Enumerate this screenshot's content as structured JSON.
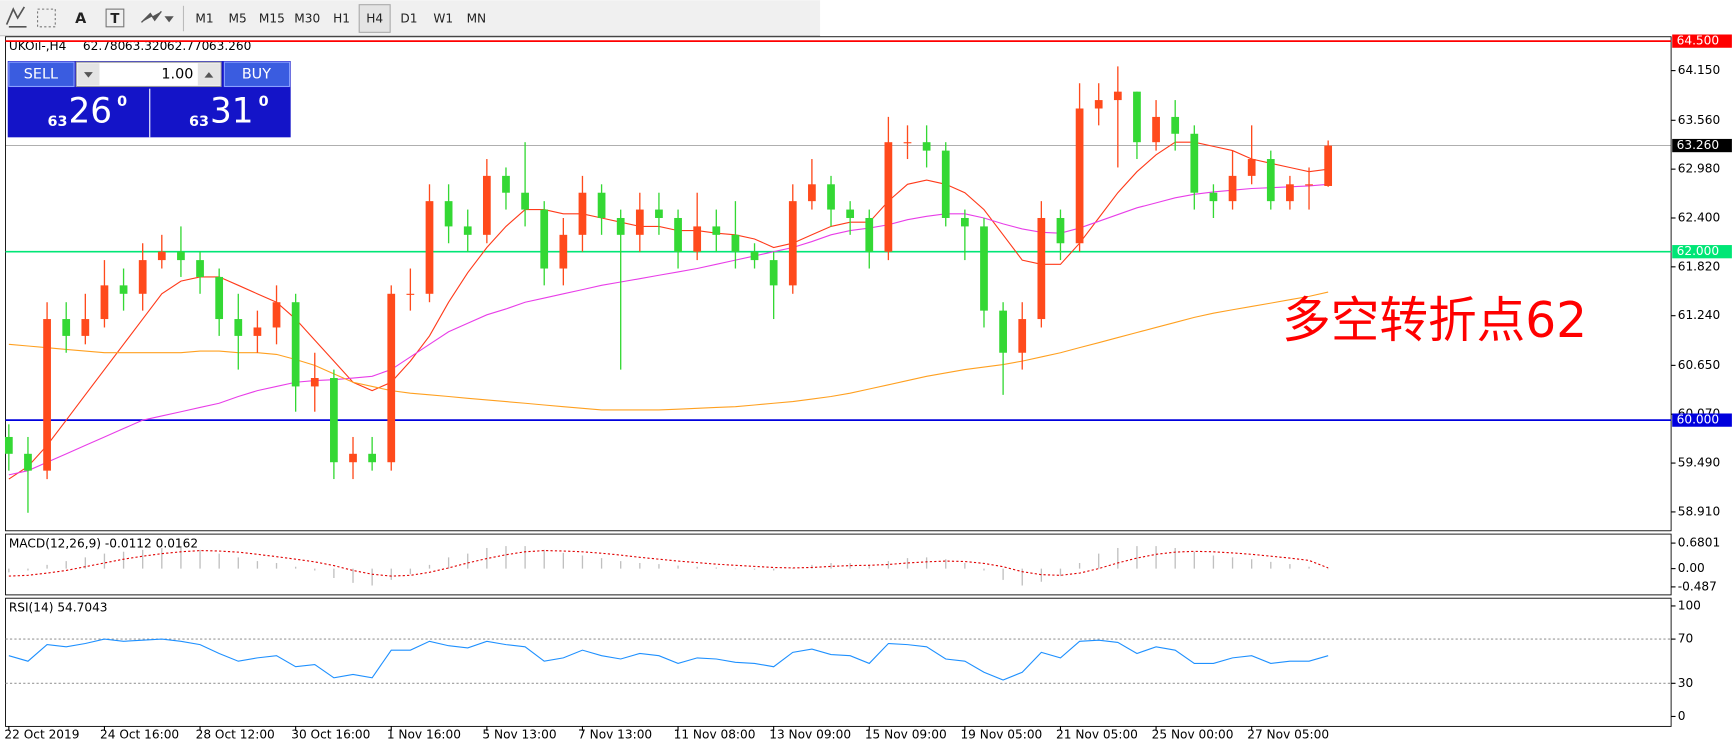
{
  "toolbar": {
    "tools": [
      "A",
      "T"
    ],
    "timeframes": [
      "M1",
      "M5",
      "M15",
      "M30",
      "H1",
      "H4",
      "D1",
      "W1",
      "MN"
    ],
    "active": "H4"
  },
  "trade_panel": {
    "sell": "SELL",
    "lots": "1.00",
    "buy": "BUY",
    "bid_big": "63",
    "bid": "26",
    "bid_sup": "0",
    "ask_big": "63",
    "ask": "31",
    "ask_sup": "0"
  },
  "chart_data": [
    {
      "type": "candlestick",
      "title": "UKOil-,H4",
      "header_values": [
        {
          "value": 62.78,
          "label": "62.780"
        },
        {
          "value": 63.32,
          "label": "63.320"
        },
        {
          "value": 62.77,
          "label": "62.770"
        },
        {
          "value": 63.26,
          "label": "63.260"
        }
      ],
      "categories": [
        "22 Oct 2019",
        null,
        null,
        null,
        null,
        "24 Oct 16:00",
        null,
        null,
        null,
        null,
        "28 Oct 12:00",
        null,
        null,
        null,
        null,
        "30 Oct 16:00",
        null,
        null,
        null,
        null,
        "1 Nov 16:00",
        null,
        null,
        null,
        null,
        "5 Nov 13:00",
        null,
        null,
        null,
        null,
        "7 Nov 13:00",
        null,
        null,
        null,
        null,
        "11 Nov 08:00",
        null,
        null,
        null,
        null,
        "13 Nov 09:00",
        null,
        null,
        null,
        null,
        "15 Nov 09:00",
        null,
        null,
        null,
        null,
        "19 Nov 05:00",
        null,
        null,
        null,
        null,
        "21 Nov 05:00",
        null,
        null,
        null,
        null,
        "25 Nov 00:00",
        null,
        null,
        null,
        null,
        "27 Nov 05:00",
        null,
        null,
        null,
        null
      ],
      "open": [
        59.8,
        59.6,
        59.4,
        61.2,
        61.0,
        61.2,
        61.6,
        61.5,
        61.9,
        62.0,
        61.9,
        61.7,
        61.2,
        61.0,
        61.1,
        61.4,
        60.4,
        60.5,
        59.5,
        59.6,
        59.5,
        61.5,
        61.5,
        62.6,
        62.3,
        62.2,
        62.9,
        62.7,
        62.5,
        61.8,
        62.2,
        62.7,
        62.4,
        62.2,
        62.5,
        62.4,
        62.0,
        62.3,
        62.2,
        62.0,
        61.9,
        61.6,
        62.6,
        62.8,
        62.5,
        62.4,
        62.0,
        63.3,
        63.3,
        63.2,
        62.4,
        62.3,
        61.3,
        60.8,
        61.2,
        62.4,
        62.1,
        63.7,
        63.8,
        63.9,
        63.3,
        63.6,
        63.4,
        62.7,
        62.6,
        62.9,
        63.1,
        62.6,
        62.8,
        62.78
      ],
      "high": [
        59.95,
        59.8,
        61.4,
        61.4,
        61.5,
        61.9,
        61.8,
        62.1,
        62.2,
        62.3,
        62.0,
        61.8,
        61.5,
        61.3,
        61.6,
        61.5,
        60.8,
        60.6,
        59.8,
        59.8,
        61.6,
        61.8,
        62.8,
        62.8,
        62.5,
        63.1,
        63.0,
        63.3,
        62.6,
        62.4,
        62.9,
        62.8,
        62.5,
        62.7,
        62.7,
        62.5,
        62.7,
        62.5,
        62.6,
        62.1,
        62.0,
        62.8,
        63.1,
        62.9,
        62.6,
        62.5,
        63.6,
        63.5,
        63.5,
        63.3,
        62.5,
        62.4,
        61.4,
        61.4,
        62.6,
        62.5,
        64.0,
        64.0,
        64.2,
        63.9,
        63.8,
        63.8,
        63.5,
        62.8,
        63.2,
        63.5,
        63.2,
        62.9,
        63.0,
        63.32
      ],
      "low": [
        59.4,
        58.9,
        59.3,
        60.8,
        60.9,
        61.1,
        61.3,
        61.3,
        61.8,
        61.7,
        61.5,
        61.0,
        60.6,
        60.8,
        60.9,
        60.1,
        60.1,
        59.3,
        59.3,
        59.4,
        59.4,
        61.3,
        61.4,
        62.1,
        62.0,
        62.1,
        62.5,
        62.3,
        61.6,
        61.6,
        62.0,
        62.2,
        60.6,
        62.0,
        62.2,
        61.8,
        61.9,
        62.0,
        61.8,
        61.8,
        61.2,
        61.5,
        62.5,
        62.3,
        62.2,
        61.8,
        61.9,
        63.1,
        63.0,
        62.3,
        61.9,
        61.1,
        60.3,
        60.6,
        61.1,
        61.9,
        62.0,
        63.5,
        63.0,
        63.1,
        63.2,
        63.2,
        62.5,
        62.4,
        62.5,
        62.8,
        62.5,
        62.5,
        62.5,
        62.77
      ],
      "close": [
        59.6,
        59.4,
        61.2,
        61.0,
        61.2,
        61.6,
        61.5,
        61.9,
        62.0,
        61.9,
        61.7,
        61.2,
        61.0,
        61.1,
        61.4,
        60.4,
        60.5,
        59.5,
        59.6,
        59.5,
        61.5,
        61.5,
        62.6,
        62.3,
        62.2,
        62.9,
        62.7,
        62.5,
        61.8,
        62.2,
        62.7,
        62.4,
        62.2,
        62.5,
        62.4,
        62.0,
        62.3,
        62.2,
        62.0,
        61.9,
        61.6,
        62.6,
        62.8,
        62.5,
        62.4,
        62.0,
        63.3,
        63.3,
        63.2,
        62.4,
        62.3,
        61.3,
        60.8,
        61.2,
        62.4,
        62.1,
        63.7,
        63.8,
        63.9,
        63.3,
        63.6,
        63.4,
        62.7,
        62.6,
        62.9,
        63.1,
        62.6,
        62.8,
        62.8,
        63.26
      ],
      "up_color": "#ff4a1c",
      "down_color": "#34d834",
      "series": [
        {
          "color": "#ff3a1a",
          "values": [
            59.3,
            59.45,
            59.7,
            60.0,
            60.3,
            60.6,
            60.9,
            61.2,
            61.5,
            61.65,
            61.7,
            61.7,
            61.6,
            61.5,
            61.4,
            61.2,
            60.95,
            60.7,
            60.45,
            60.35,
            60.45,
            60.7,
            61.0,
            61.4,
            61.75,
            62.05,
            62.3,
            62.5,
            62.5,
            62.45,
            62.45,
            62.4,
            62.35,
            62.3,
            62.3,
            62.25,
            62.25,
            62.22,
            62.2,
            62.15,
            62.05,
            62.1,
            62.2,
            62.3,
            62.35,
            62.35,
            62.6,
            62.8,
            62.85,
            62.8,
            62.7,
            62.5,
            62.2,
            61.9,
            61.85,
            61.85,
            62.1,
            62.4,
            62.7,
            62.95,
            63.15,
            63.3,
            63.3,
            63.25,
            63.2,
            63.1,
            63.05,
            63.0,
            62.95,
            62.98
          ]
        },
        {
          "color": "#e83ee8",
          "values": [
            59.35,
            59.4,
            59.5,
            59.6,
            59.7,
            59.8,
            59.9,
            60.0,
            60.05,
            60.1,
            60.15,
            60.2,
            60.28,
            60.35,
            60.4,
            60.45,
            60.47,
            60.48,
            60.5,
            60.52,
            60.6,
            60.75,
            60.9,
            61.05,
            61.15,
            61.25,
            61.32,
            61.4,
            61.45,
            61.5,
            61.55,
            61.6,
            61.64,
            61.68,
            61.72,
            61.76,
            61.8,
            61.85,
            61.9,
            61.95,
            62.0,
            62.05,
            62.12,
            62.2,
            62.25,
            62.28,
            62.32,
            62.38,
            62.42,
            62.45,
            62.45,
            62.4,
            62.33,
            62.27,
            62.23,
            62.22,
            62.28,
            62.36,
            62.44,
            62.52,
            62.58,
            62.64,
            62.68,
            62.71,
            62.73,
            62.75,
            62.76,
            62.77,
            62.78,
            62.8
          ]
        },
        {
          "color": "#ffa020",
          "values": [
            60.9,
            60.88,
            60.86,
            60.84,
            60.82,
            60.8,
            60.8,
            60.8,
            60.8,
            60.8,
            60.82,
            60.82,
            60.8,
            60.8,
            60.78,
            60.72,
            60.65,
            60.55,
            60.45,
            60.4,
            60.35,
            60.32,
            60.3,
            60.28,
            60.26,
            60.24,
            60.22,
            60.2,
            60.18,
            60.16,
            60.14,
            60.12,
            60.12,
            60.12,
            60.12,
            60.13,
            60.14,
            60.15,
            60.16,
            60.18,
            60.2,
            60.22,
            60.25,
            60.28,
            60.32,
            60.37,
            60.42,
            60.47,
            60.52,
            60.56,
            60.6,
            60.63,
            60.66,
            60.7,
            60.75,
            60.8,
            60.86,
            60.92,
            60.98,
            61.04,
            61.1,
            61.16,
            61.22,
            61.27,
            61.31,
            61.35,
            61.39,
            61.43,
            61.47,
            61.52
          ]
        }
      ],
      "levels": [
        {
          "value": 64.5,
          "label": "64.500",
          "color": "#ff0000"
        },
        {
          "value": 63.26,
          "label": "63.260",
          "color": "#000000"
        },
        {
          "value": 62.0,
          "label": "62.000",
          "color": "#00e676"
        },
        {
          "value": 60.0,
          "label": "60.000",
          "color": "#0000dd"
        }
      ],
      "annotation": {
        "text": "多空转折点62",
        "color": "#ff0000"
      },
      "ylim": [
        58.686,
        64.552
      ],
      "yticks": [
        {
          "value": 64.15,
          "label": "64.150"
        },
        {
          "value": 63.56,
          "label": "63.560"
        },
        {
          "value": 62.98,
          "label": "62.980"
        },
        {
          "value": 62.4,
          "label": "62.400"
        },
        {
          "value": 61.82,
          "label": "61.820"
        },
        {
          "value": 61.24,
          "label": "61.240"
        },
        {
          "value": 60.65,
          "label": "60.650"
        },
        {
          "value": 60.07,
          "label": "60.070"
        },
        {
          "value": 59.49,
          "label": "59.490"
        },
        {
          "value": 58.91,
          "label": "58.910"
        }
      ]
    },
    {
      "type": "macd",
      "title": "MACD(12,26,9) -0.0112 0.0162",
      "series": [
        {
          "color": "#c0c0c0",
          "values": [
            -0.1,
            -0.05,
            0.1,
            0.2,
            0.3,
            0.4,
            0.45,
            0.5,
            0.55,
            0.55,
            0.5,
            0.4,
            0.3,
            0.2,
            0.15,
            0.05,
            -0.05,
            -0.25,
            -0.38,
            -0.45,
            -0.3,
            -0.15,
            0.1,
            0.3,
            0.4,
            0.55,
            0.6,
            0.6,
            0.5,
            0.42,
            0.35,
            0.28,
            0.2,
            0.15,
            0.12,
            0.08,
            0.05,
            0.03,
            0.0,
            -0.03,
            -0.05,
            0.02,
            0.1,
            0.15,
            0.15,
            0.1,
            0.2,
            0.28,
            0.3,
            0.25,
            0.15,
            -0.05,
            -0.3,
            -0.45,
            -0.35,
            -0.2,
            0.15,
            0.4,
            0.55,
            0.6,
            0.6,
            0.55,
            0.45,
            0.35,
            0.3,
            0.25,
            0.18,
            0.12,
            0.05,
            -0.01
          ]
        },
        {
          "color": "#e00000",
          "values": [
            -0.2,
            -0.18,
            -0.12,
            -0.05,
            0.05,
            0.15,
            0.25,
            0.33,
            0.4,
            0.45,
            0.48,
            0.47,
            0.44,
            0.38,
            0.32,
            0.25,
            0.18,
            0.08,
            -0.05,
            -0.15,
            -0.2,
            -0.18,
            -0.1,
            0.02,
            0.15,
            0.27,
            0.37,
            0.45,
            0.48,
            0.47,
            0.45,
            0.41,
            0.36,
            0.3,
            0.25,
            0.2,
            0.16,
            0.12,
            0.09,
            0.06,
            0.03,
            0.02,
            0.03,
            0.06,
            0.08,
            0.09,
            0.11,
            0.15,
            0.18,
            0.2,
            0.19,
            0.14,
            0.05,
            -0.08,
            -0.16,
            -0.18,
            -0.12,
            0.0,
            0.15,
            0.28,
            0.38,
            0.44,
            0.46,
            0.45,
            0.42,
            0.38,
            0.33,
            0.28,
            0.22,
            0.02
          ]
        }
      ],
      "ylim": [
        -0.7,
        0.92
      ],
      "yticks": [
        0.6801,
        {
          "value": 0,
          "label": "0.00"
        },
        -0.487
      ]
    },
    {
      "type": "rsi",
      "title": "RSI(14) 54.7043",
      "color": "#1e90ff",
      "values": [
        55,
        50,
        65,
        63,
        66,
        70,
        68,
        69,
        70,
        68,
        65,
        57,
        50,
        53,
        55,
        45,
        47,
        35,
        38,
        35,
        60,
        60,
        68,
        64,
        62,
        68,
        65,
        63,
        50,
        53,
        60,
        55,
        52,
        57,
        55,
        48,
        53,
        52,
        49,
        48,
        45,
        58,
        61,
        56,
        55,
        48,
        66,
        65,
        63,
        52,
        50,
        40,
        33,
        40,
        58,
        53,
        68,
        69,
        67,
        57,
        63,
        60,
        48,
        48,
        53,
        55,
        48,
        50,
        50,
        55
      ],
      "levels": [
        70,
        30
      ],
      "ylim": [
        -9,
        107
      ],
      "yticks": [
        100,
        70,
        30,
        0
      ]
    }
  ]
}
